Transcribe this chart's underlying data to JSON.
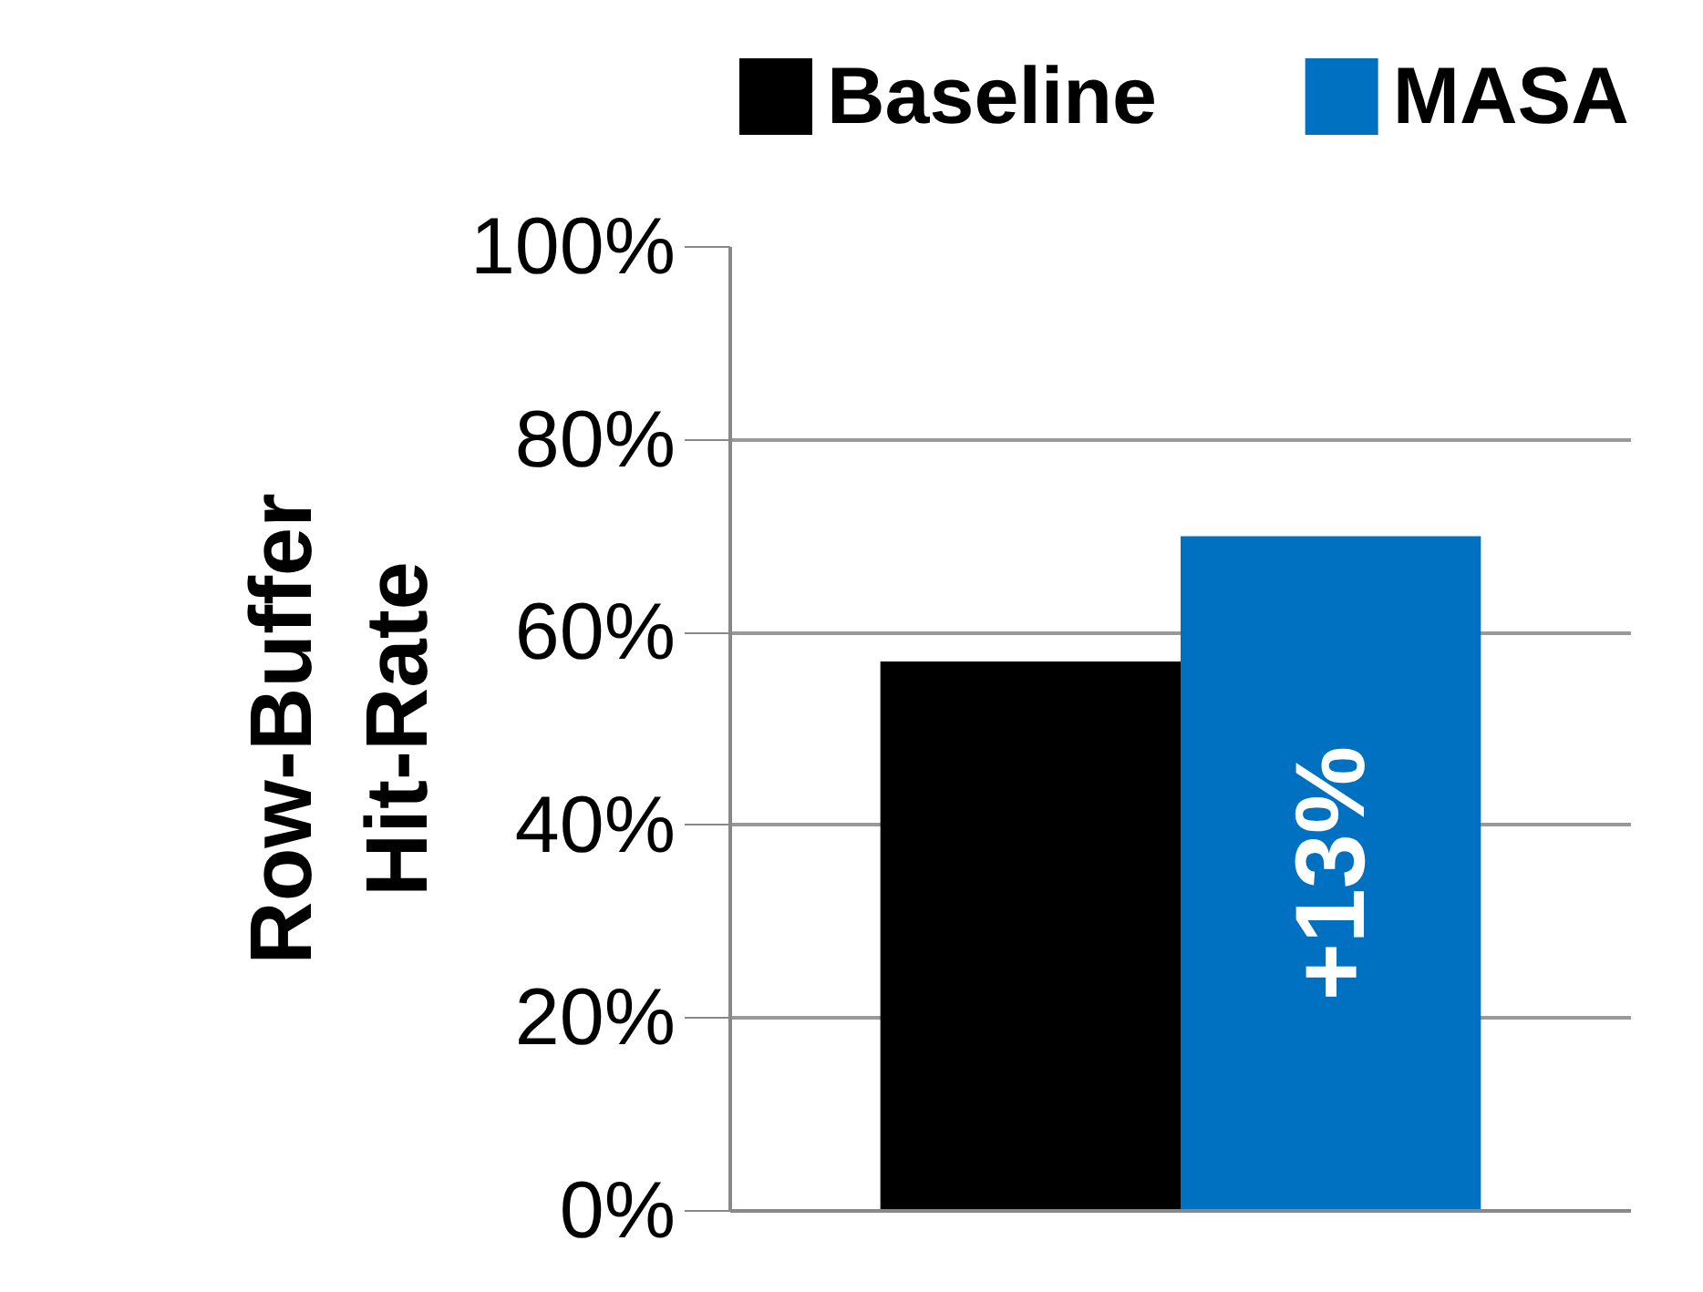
{
  "chart_data": {
    "type": "bar",
    "ylabel": "Row-Buffer Hit-Rate",
    "categories": [
      null
    ],
    "series": [
      {
        "name": "Baseline",
        "color": "#000000",
        "values": [
          57
        ]
      },
      {
        "name": "MASA",
        "color": "#0070c0",
        "values": [
          70
        ]
      }
    ],
    "ylim": [
      0,
      100
    ],
    "yticks": [
      {
        "value": 0,
        "label": "0%"
      },
      {
        "value": 20,
        "label": "20%"
      },
      {
        "value": 40,
        "label": "40%"
      },
      {
        "value": 60,
        "label": "60%"
      },
      {
        "value": 80,
        "label": "80%"
      },
      {
        "value": 100,
        "label": "100%"
      }
    ],
    "grid": "y",
    "legend": "top",
    "annotations": [
      "+13%"
    ]
  }
}
